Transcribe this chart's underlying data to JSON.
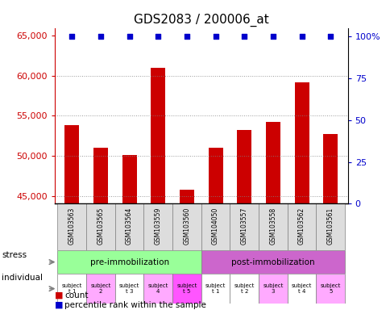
{
  "title": "GDS2083 / 200006_at",
  "samples": [
    "GSM103563",
    "GSM103565",
    "GSM103564",
    "GSM103559",
    "GSM103560",
    "GSM104050",
    "GSM103557",
    "GSM103558",
    "GSM103562",
    "GSM103561"
  ],
  "counts": [
    53800,
    51000,
    50100,
    61000,
    45800,
    51000,
    53200,
    54200,
    59200,
    52700
  ],
  "ylim_left": [
    44000,
    66000
  ],
  "yticks_left": [
    45000,
    50000,
    55000,
    60000,
    65000
  ],
  "ylim_right": [
    0,
    105
  ],
  "yticks_right": [
    0,
    25,
    50,
    75,
    100
  ],
  "ytick_right_labels": [
    "0",
    "25",
    "50",
    "75",
    "100%"
  ],
  "bar_color": "#cc0000",
  "dot_color": "#0000cc",
  "bar_baseline": 44000,
  "stress_labels": [
    "pre-immobilization",
    "post-immobilization"
  ],
  "stress_colors": [
    "#99ff99",
    "#cc66cc"
  ],
  "stress_pre_count": 5,
  "stress_post_count": 5,
  "individual_labels": [
    "subject\nt 1",
    "subject\n2",
    "subject\nt 3",
    "subject\n4",
    "subject\nt 5",
    "subject\nt 1",
    "subject\nt 2",
    "subject\n3",
    "subject\nt 4",
    "subject\n5"
  ],
  "individual_colors": [
    "#ffffff",
    "#ffaaff",
    "#ffffff",
    "#ffaaff",
    "#ff55ff",
    "#ffffff",
    "#ffffff",
    "#ffaaff",
    "#ffffff",
    "#ffaaff"
  ],
  "legend_count_color": "#cc0000",
  "legend_dot_color": "#0000cc",
  "background_color": "#ffffff"
}
